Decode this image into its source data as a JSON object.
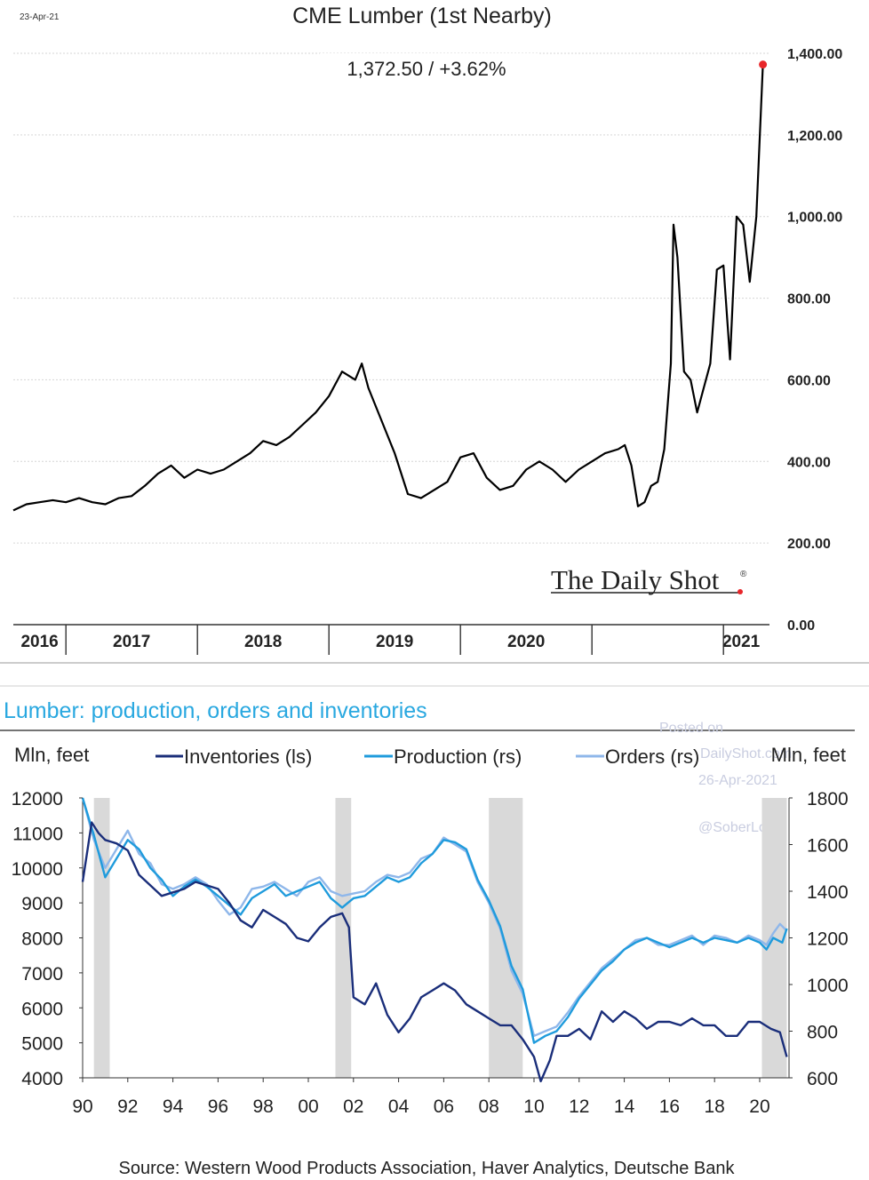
{
  "top_chart": {
    "date_stamp": "23-Apr-21",
    "title": "CME Lumber (1st Nearby)",
    "readout": "1,372.50  /  +3.62%",
    "watermark": "The Daily Shot",
    "watermark_mark": "®",
    "last_point_color": "#e8262a"
  },
  "bottom_chart": {
    "title": "Lumber: production, orders and inventories",
    "left_unit": "Mln, feet",
    "right_unit": "Mln, feet",
    "legend": [
      "Inventories (ls)",
      "Production (rs)",
      "Orders (rs)"
    ],
    "watermark_lines": [
      "Posted on",
      "DailyShot.com",
      "26-Apr-2021",
      "@SoberLook"
    ],
    "source": "Source: Western Wood Products Association, Haver Analytics, Deutsche Bank"
  },
  "chart_data": [
    {
      "type": "line",
      "title": "CME Lumber (1st Nearby)",
      "xlabel": "",
      "ylabel": "",
      "x_tick_labels": [
        "2016",
        "2017",
        "2018",
        "2019",
        "2020",
        "2021"
      ],
      "y_ticks": [
        "0.00",
        "200.00",
        "400.00",
        "600.00",
        "800.00",
        "1,000.00",
        "1,200.00",
        "1,400.00"
      ],
      "ylim": [
        0,
        1400
      ],
      "xlim": [
        2015.6,
        2021.35
      ],
      "grid": true,
      "series": [
        {
          "name": "CME Lumber (1st Nearby)",
          "color": "#000000",
          "x": [
            2015.6,
            2015.7,
            2015.8,
            2015.9,
            2016.0,
            2016.1,
            2016.2,
            2016.3,
            2016.4,
            2016.5,
            2016.6,
            2016.7,
            2016.8,
            2016.9,
            2017.0,
            2017.1,
            2017.2,
            2017.3,
            2017.4,
            2017.5,
            2017.6,
            2017.7,
            2017.8,
            2017.9,
            2018.0,
            2018.1,
            2018.2,
            2018.25,
            2018.3,
            2018.4,
            2018.5,
            2018.6,
            2018.7,
            2018.8,
            2018.9,
            2019.0,
            2019.1,
            2019.2,
            2019.3,
            2019.4,
            2019.5,
            2019.6,
            2019.7,
            2019.8,
            2019.9,
            2020.0,
            2020.1,
            2020.2,
            2020.25,
            2020.3,
            2020.35,
            2020.4,
            2020.45,
            2020.5,
            2020.55,
            2020.6,
            2020.62,
            2020.65,
            2020.7,
            2020.75,
            2020.8,
            2020.85,
            2020.9,
            2020.95,
            2021.0,
            2021.05,
            2021.1,
            2021.15,
            2021.2,
            2021.25,
            2021.3
          ],
          "values": [
            280,
            295,
            300,
            305,
            300,
            310,
            300,
            295,
            310,
            315,
            340,
            370,
            390,
            360,
            380,
            370,
            380,
            400,
            420,
            450,
            440,
            460,
            490,
            520,
            560,
            620,
            600,
            640,
            580,
            500,
            420,
            320,
            310,
            330,
            350,
            410,
            420,
            360,
            330,
            340,
            380,
            400,
            380,
            350,
            380,
            400,
            420,
            430,
            440,
            390,
            290,
            300,
            340,
            350,
            430,
            640,
            980,
            900,
            620,
            600,
            520,
            580,
            640,
            870,
            880,
            650,
            1000,
            980,
            840,
            1000,
            1372.5
          ]
        }
      ]
    },
    {
      "type": "line",
      "title": "Lumber: production, orders and inventories",
      "xlabel": "",
      "ylabel": "Mln, feet",
      "x_tick_labels": [
        "90",
        "92",
        "94",
        "96",
        "98",
        "00",
        "02",
        "04",
        "06",
        "08",
        "10",
        "12",
        "14",
        "16",
        "18",
        "20"
      ],
      "xlim": [
        1990,
        2021.3
      ],
      "left_y_ticks": [
        "4000",
        "5000",
        "6000",
        "7000",
        "8000",
        "9000",
        "10000",
        "11000",
        "12000"
      ],
      "left_ylim": [
        4000,
        12000
      ],
      "right_y_ticks": [
        "600",
        "800",
        "1000",
        "1200",
        "1400",
        "1600",
        "1800"
      ],
      "right_ylim": [
        600,
        1800
      ],
      "recession_shading": [
        [
          1990.5,
          1991.2
        ],
        [
          2001.2,
          2001.9
        ],
        [
          2008.0,
          2009.5
        ],
        [
          2020.1,
          2021.2
        ]
      ],
      "series": [
        {
          "name": "Inventories (ls)",
          "axis": "left",
          "color": "#1a2e7a",
          "x": [
            1990.0,
            1990.4,
            1990.7,
            1991.0,
            1991.5,
            1992.0,
            1992.5,
            1993.0,
            1993.5,
            1994.0,
            1994.5,
            1995.0,
            1995.5,
            1996.0,
            1996.5,
            1997.0,
            1997.5,
            1998.0,
            1998.5,
            1999.0,
            1999.5,
            2000.0,
            2000.5,
            2001.0,
            2001.5,
            2001.8,
            2002.0,
            2002.5,
            2003.0,
            2003.5,
            2004.0,
            2004.5,
            2005.0,
            2005.5,
            2006.0,
            2006.5,
            2007.0,
            2007.5,
            2008.0,
            2008.5,
            2009.0,
            2009.5,
            2010.0,
            2010.3,
            2010.7,
            2011.0,
            2011.5,
            2012.0,
            2012.5,
            2013.0,
            2013.5,
            2014.0,
            2014.5,
            2015.0,
            2015.5,
            2016.0,
            2016.5,
            2017.0,
            2017.5,
            2018.0,
            2018.5,
            2019.0,
            2019.5,
            2020.0,
            2020.5,
            2020.9,
            2021.2
          ],
          "values": [
            9600,
            11300,
            11000,
            10800,
            10700,
            10500,
            9800,
            9500,
            9200,
            9300,
            9400,
            9600,
            9500,
            9400,
            9000,
            8500,
            8300,
            8800,
            8600,
            8400,
            8000,
            7900,
            8300,
            8600,
            8700,
            8300,
            6300,
            6100,
            6700,
            5800,
            5300,
            5700,
            6300,
            6500,
            6700,
            6500,
            6100,
            5900,
            5700,
            5500,
            5500,
            5100,
            4600,
            3900,
            4500,
            5200,
            5200,
            5400,
            5100,
            5900,
            5600,
            5900,
            5700,
            5400,
            5600,
            5600,
            5500,
            5700,
            5500,
            5500,
            5200,
            5200,
            5600,
            5600,
            5400,
            5300,
            4600
          ]
        },
        {
          "name": "Production (rs)",
          "axis": "right",
          "color": "#1f9bdc",
          "x": [
            1990.0,
            1990.5,
            1991.0,
            1991.5,
            1992.0,
            1992.5,
            1993.0,
            1993.5,
            1994.0,
            1994.5,
            1995.0,
            1995.5,
            1996.0,
            1996.5,
            1997.0,
            1997.5,
            1998.0,
            1998.5,
            1999.0,
            1999.5,
            2000.0,
            2000.5,
            2001.0,
            2001.5,
            2002.0,
            2002.5,
            2003.0,
            2003.5,
            2004.0,
            2004.5,
            2005.0,
            2005.5,
            2006.0,
            2006.5,
            2007.0,
            2007.5,
            2008.0,
            2008.5,
            2009.0,
            2009.5,
            2010.0,
            2010.5,
            2011.0,
            2011.5,
            2012.0,
            2012.5,
            2013.0,
            2013.5,
            2014.0,
            2014.5,
            2015.0,
            2015.5,
            2016.0,
            2016.5,
            2017.0,
            2017.5,
            2018.0,
            2018.5,
            2019.0,
            2019.5,
            2020.0,
            2020.3,
            2020.6,
            2021.0,
            2021.2
          ],
          "values": [
            1800,
            1640,
            1460,
            1540,
            1620,
            1580,
            1500,
            1450,
            1380,
            1420,
            1450,
            1420,
            1380,
            1340,
            1300,
            1370,
            1400,
            1430,
            1380,
            1400,
            1420,
            1440,
            1370,
            1330,
            1370,
            1380,
            1420,
            1460,
            1440,
            1460,
            1520,
            1560,
            1620,
            1610,
            1580,
            1450,
            1360,
            1250,
            1080,
            980,
            750,
            780,
            800,
            860,
            940,
            1000,
            1060,
            1100,
            1150,
            1180,
            1200,
            1180,
            1160,
            1180,
            1200,
            1180,
            1200,
            1190,
            1180,
            1200,
            1180,
            1150,
            1200,
            1180,
            1240
          ]
        },
        {
          "name": "Orders (rs)",
          "axis": "right",
          "color": "#8fb7ea",
          "x": [
            1990.0,
            1990.5,
            1991.0,
            1991.5,
            1992.0,
            1992.5,
            1993.0,
            1993.5,
            1994.0,
            1994.5,
            1995.0,
            1995.5,
            1996.0,
            1996.5,
            1997.0,
            1997.5,
            1998.0,
            1998.5,
            1999.0,
            1999.5,
            2000.0,
            2000.5,
            2001.0,
            2001.5,
            2002.0,
            2002.5,
            2003.0,
            2003.5,
            2004.0,
            2004.5,
            2005.0,
            2005.5,
            2006.0,
            2006.5,
            2007.0,
            2007.5,
            2008.0,
            2008.5,
            2009.0,
            2009.5,
            2010.0,
            2010.5,
            2011.0,
            2011.5,
            2012.0,
            2012.5,
            2013.0,
            2013.5,
            2014.0,
            2014.5,
            2015.0,
            2015.5,
            2016.0,
            2016.5,
            2017.0,
            2017.5,
            2018.0,
            2018.5,
            2019.0,
            2019.5,
            2020.0,
            2020.3,
            2020.6,
            2020.9,
            2021.2
          ],
          "values": [
            1800,
            1620,
            1500,
            1580,
            1660,
            1560,
            1520,
            1430,
            1410,
            1430,
            1460,
            1430,
            1360,
            1300,
            1330,
            1410,
            1420,
            1440,
            1410,
            1380,
            1440,
            1460,
            1400,
            1380,
            1390,
            1400,
            1440,
            1470,
            1460,
            1480,
            1540,
            1560,
            1630,
            1600,
            1570,
            1440,
            1350,
            1240,
            1060,
            960,
            780,
            800,
            820,
            880,
            950,
            1010,
            1070,
            1110,
            1150,
            1190,
            1200,
            1170,
            1170,
            1190,
            1210,
            1170,
            1210,
            1200,
            1180,
            1210,
            1190,
            1170,
            1220,
            1260,
            1230
          ]
        }
      ]
    }
  ]
}
